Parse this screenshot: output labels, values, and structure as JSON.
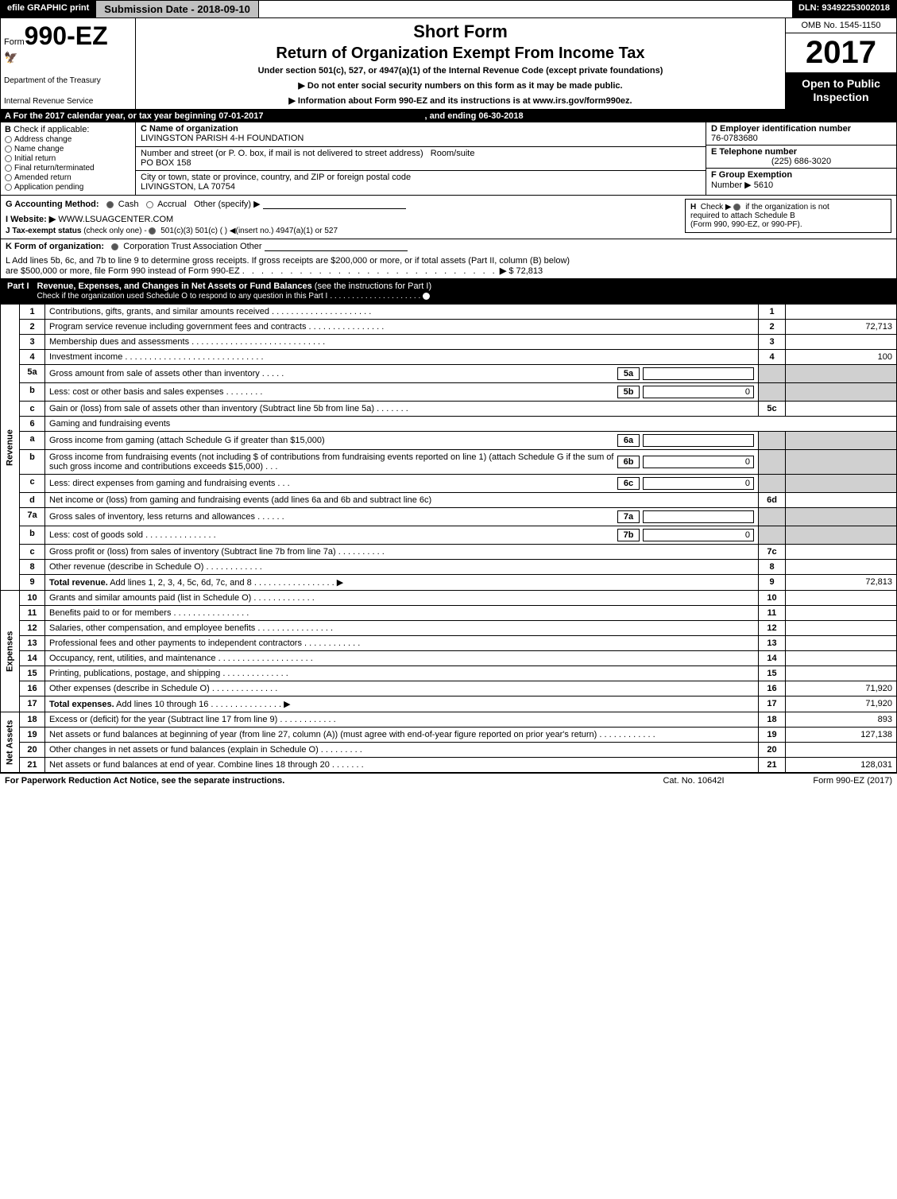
{
  "topbar": {
    "efile": "efile GRAPHIC print",
    "submission": "Submission Date - 2018-09-10",
    "dln": "DLN: 93492253002018"
  },
  "header": {
    "form_prefix": "Form",
    "form_number": "990-EZ",
    "short_form": "Short Form",
    "return_title": "Return of Organization Exempt From Income Tax",
    "under_section": "Under section 501(c), 527, or 4947(a)(1) of the Internal Revenue Code (except private foundations)",
    "notice1": "▶ Do not enter social security numbers on this form as it may be made public.",
    "notice2": "▶ Information about Form 990-EZ and its instructions is at www.irs.gov/form990ez.",
    "dept1": "Department of the Treasury",
    "dept2": "Internal Revenue Service",
    "omb": "OMB No. 1545-1150",
    "year": "2017",
    "open_public1": "Open to Public",
    "open_public2": "Inspection"
  },
  "line_a": {
    "prefix": "A For the 2017 calendar year, or tax year beginning 07-01-2017",
    "ending": ", and ending 06-30-2018"
  },
  "section_b": {
    "label": "B",
    "check_if": "Check if applicable:",
    "items": [
      "Address change",
      "Name change",
      "Initial return",
      "Final return/terminated",
      "Amended return",
      "Application pending"
    ]
  },
  "section_c": {
    "name_label": "C Name of organization",
    "name_value": "LIVINGSTON PARISH 4-H FOUNDATION",
    "address_label": "Number and street (or P. O. box, if mail is not delivered to street address)",
    "room_label": "Room/suite",
    "address_value": "PO BOX 158",
    "city_label": "City or town, state or province, country, and ZIP or foreign postal code",
    "city_value": "LIVINGSTON, LA  70754"
  },
  "section_d": {
    "label": "D Employer identification number",
    "value": "76-0783680"
  },
  "section_e": {
    "label": "E Telephone number",
    "value": "(225) 686-3020"
  },
  "section_f": {
    "label": "F Group Exemption",
    "number_label": "Number ▶",
    "value": "5610"
  },
  "line_g": {
    "label": "G Accounting Method:",
    "cash": "Cash",
    "accrual": "Accrual",
    "other": "Other (specify) ▶"
  },
  "line_h": {
    "label": "H",
    "text1": "Check ▶",
    "text2": "if the organization is not",
    "text3": "required to attach Schedule B",
    "text4": "(Form 990, 990-EZ, or 990-PF)."
  },
  "line_i": {
    "label": "I Website: ▶",
    "value": "WWW.LSUAGCENTER.COM"
  },
  "line_j": {
    "label": "J Tax-exempt status",
    "detail": "(check only one) -",
    "opts": "501(c)(3)    501(c) (   ) ◀(insert no.)    4947(a)(1) or    527"
  },
  "line_k": {
    "label": "K Form of organization:",
    "opts": "Corporation    Trust    Association    Other"
  },
  "line_l": {
    "text1": "L Add lines 5b, 6c, and 7b to line 9 to determine gross receipts. If gross receipts are $200,000 or more, or if total assets (Part II, column (B) below)",
    "text2": "are $500,000 or more, file Form 990 instead of Form 990-EZ",
    "dots": ". . . . . . . . . . . . . . . . . . . . . . . . . . .",
    "arrow": "▶",
    "value": "$ 72,813"
  },
  "part1": {
    "num": "Part I",
    "title": "Revenue, Expenses, and Changes in Net Assets or Fund Balances",
    "paren": "(see the instructions for Part I)",
    "check": "Check if the organization used Schedule O to respond to any question in this Part I"
  },
  "side_labels": {
    "revenue": "Revenue",
    "expenses": "Expenses",
    "net_assets": "Net Assets"
  },
  "rows": [
    {
      "num": "1",
      "desc": "Contributions, gifts, grants, and similar amounts received . . . . . . . . . . . . . . . . . . . . .",
      "box": "1",
      "val": ""
    },
    {
      "num": "2",
      "desc": "Program service revenue including government fees and contracts . . . . . . . . . . . . . . . .",
      "box": "2",
      "val": "72,713"
    },
    {
      "num": "3",
      "desc": "Membership dues and assessments . . . . . . . . . . . . . . . . . . . . . . . . . . . .",
      "box": "3",
      "val": ""
    },
    {
      "num": "4",
      "desc": "Investment income . . . . . . . . . . . . . . . . . . . . . . . . . . . . .",
      "box": "4",
      "val": "100"
    },
    {
      "num": "5a",
      "desc": "Gross amount from sale of assets other than inventory . . . . .",
      "sub_num": "5a",
      "sub_val": ""
    },
    {
      "num": "b",
      "desc": "Less: cost or other basis and sales expenses . . . . . . . .",
      "sub_num": "5b",
      "sub_val": "0"
    },
    {
      "num": "c",
      "desc": "Gain or (loss) from sale of assets other than inventory (Subtract line 5b from line 5a) . . . . . . .",
      "box": "5c",
      "val": ""
    },
    {
      "num": "6",
      "desc": "Gaming and fundraising events"
    },
    {
      "num": "a",
      "desc": "Gross income from gaming (attach Schedule G if greater than $15,000)",
      "sub_num": "6a",
      "sub_val": ""
    },
    {
      "num": "b",
      "desc": "Gross income from fundraising events (not including $                    of contributions from fundraising events reported on line 1) (attach Schedule G if the sum of such gross income and contributions exceeds $15,000)   . . .",
      "sub_num": "6b",
      "sub_val": "0"
    },
    {
      "num": "c",
      "desc": "Less: direct expenses from gaming and fundraising events       . . .",
      "sub_num": "6c",
      "sub_val": "0"
    },
    {
      "num": "d",
      "desc": "Net income or (loss) from gaming and fundraising events (add lines 6a and 6b and subtract line 6c)",
      "box": "6d",
      "val": ""
    },
    {
      "num": "7a",
      "desc": "Gross sales of inventory, less returns and allowances . . . . . .",
      "sub_num": "7a",
      "sub_val": ""
    },
    {
      "num": "b",
      "desc": "Less: cost of goods sold        . . . . . . . . . . . . . . .",
      "sub_num": "7b",
      "sub_val": "0"
    },
    {
      "num": "c",
      "desc": "Gross profit or (loss) from sales of inventory (Subtract line 7b from line 7a) . . . . . . . . . .",
      "box": "7c",
      "val": ""
    },
    {
      "num": "8",
      "desc": "Other revenue (describe in Schedule O)                                      . . . . . . . . . . . .",
      "box": "8",
      "val": ""
    },
    {
      "num": "9",
      "desc": "Total revenue. Add lines 1, 2, 3, 4, 5c, 6d, 7c, and 8 . . . . . . . . . . . . . . . . .  ▶",
      "box": "9",
      "val": "72,813",
      "bold": true
    },
    {
      "num": "10",
      "desc": "Grants and similar amounts paid (list in Schedule O)             . . . . . . . . . . . . .",
      "box": "10",
      "val": ""
    },
    {
      "num": "11",
      "desc": "Benefits paid to or for members                               . . . . . . . . . . . . . . . .",
      "box": "11",
      "val": ""
    },
    {
      "num": "12",
      "desc": "Salaries, other compensation, and employee benefits . . . . . . . . . . . . . . . .",
      "box": "12",
      "val": ""
    },
    {
      "num": "13",
      "desc": "Professional fees and other payments to independent contractors . . . . . . . . . . . .",
      "box": "13",
      "val": ""
    },
    {
      "num": "14",
      "desc": "Occupancy, rent, utilities, and maintenance . . . . . . . . . . . . . . . . . . . .",
      "box": "14",
      "val": ""
    },
    {
      "num": "15",
      "desc": "Printing, publications, postage, and shipping                 . . . . . . . . . . . . . .",
      "box": "15",
      "val": ""
    },
    {
      "num": "16",
      "desc": "Other expenses (describe in Schedule O)                       . . . . . . . . . . . . . .",
      "box": "16",
      "val": "71,920"
    },
    {
      "num": "17",
      "desc": "Total expenses. Add lines 10 through 16               . . . . . . . . . . . . . . .  ▶",
      "box": "17",
      "val": "71,920",
      "bold": true
    },
    {
      "num": "18",
      "desc": "Excess or (deficit) for the year (Subtract line 17 from line 9)        . . . . . . . . . . . .",
      "box": "18",
      "val": "893"
    },
    {
      "num": "19",
      "desc": "Net assets or fund balances at beginning of year (from line 27, column (A)) (must agree with end-of-year figure reported on prior year's return)                    . . . . . . . . . . . .",
      "box": "19",
      "val": "127,138"
    },
    {
      "num": "20",
      "desc": "Other changes in net assets or fund balances (explain in Schedule O)     . . . . . . . . .",
      "box": "20",
      "val": ""
    },
    {
      "num": "21",
      "desc": "Net assets or fund balances at end of year. Combine lines 18 through 20          . . . . . . .",
      "box": "21",
      "val": "128,031"
    }
  ],
  "footer": {
    "left": "For Paperwork Reduction Act Notice, see the separate instructions.",
    "mid": "Cat. No. 10642I",
    "right": "Form 990-EZ (2017)"
  }
}
